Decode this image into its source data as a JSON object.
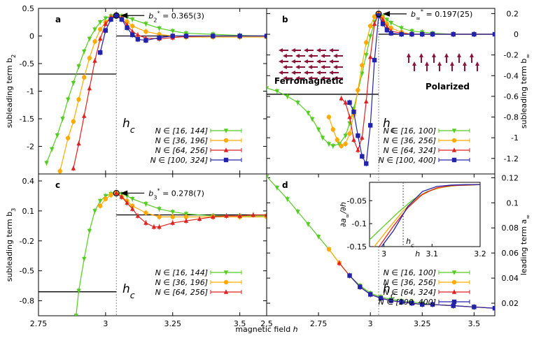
{
  "figure": {
    "xlabel": "magnetic field h",
    "hc_label": "h_c"
  },
  "chart_data": [
    {
      "type": "line",
      "panel": "a",
      "ylabel": "subleading term b_2",
      "xlim": [
        2.75,
        3.6
      ],
      "ylim": [
        -2.5,
        0.5
      ],
      "xticks": [
        2.75,
        3,
        3.25,
        3.5
      ],
      "xtick_labels": [
        "2.75",
        "3",
        "3.25",
        "3.5"
      ],
      "yticks": [
        0.5,
        0,
        -0.5,
        -1,
        -1.5,
        -2
      ],
      "ytick_labels": [
        "0.5",
        "0",
        "-0.5",
        "-1",
        "-1.5",
        "-2"
      ],
      "hc": 3.04,
      "annotation": {
        "label": "b",
        "sub": "2",
        "sup": "*",
        "value": " = 0.365(3)",
        "x": 3.04,
        "y": 0.37
      },
      "hlines": [
        {
          "y": -0.69,
          "x0": 2.75,
          "x1": 3.04
        },
        {
          "y": 0.0,
          "x0": 3.04,
          "x1": 3.6
        }
      ],
      "series": [
        {
          "name": "N ∈ [16, 144]",
          "color": "#55cc22",
          "marker": "tri_down",
          "x": [
            2.78,
            2.8,
            2.82,
            2.84,
            2.86,
            2.88,
            2.9,
            2.92,
            2.94,
            2.96,
            2.98,
            3.0,
            3.02,
            3.04,
            3.06,
            3.08,
            3.1,
            3.15,
            3.2,
            3.25,
            3.3,
            3.4,
            3.5,
            3.6
          ],
          "y": [
            -2.3,
            -2.05,
            -1.8,
            -1.5,
            -1.15,
            -0.85,
            -0.55,
            -0.28,
            -0.05,
            0.12,
            0.25,
            0.32,
            0.36,
            0.37,
            0.36,
            0.34,
            0.3,
            0.22,
            0.14,
            0.09,
            0.05,
            0.03,
            0.01,
            0.0
          ]
        },
        {
          "name": "N ∈ [36, 196]",
          "color": "#ffaa00",
          "marker": "circle",
          "x": [
            2.83,
            2.86,
            2.88,
            2.9,
            2.92,
            2.94,
            2.96,
            2.98,
            3.0,
            3.02,
            3.04,
            3.06,
            3.08,
            3.1,
            3.15,
            3.2,
            3.25,
            3.3,
            3.4,
            3.5,
            3.6
          ],
          "y": [
            -2.45,
            -1.85,
            -1.55,
            -1.15,
            -0.75,
            -0.4,
            -0.1,
            0.12,
            0.25,
            0.34,
            0.37,
            0.34,
            0.26,
            0.18,
            0.08,
            0.03,
            0.0,
            -0.02,
            -0.02,
            -0.02,
            -0.02
          ]
        },
        {
          "name": "N ∈ [64, 256]",
          "color": "#dd2222",
          "marker": "triangle",
          "x": [
            2.88,
            2.9,
            2.92,
            2.94,
            2.96,
            2.98,
            3.0,
            3.02,
            3.04,
            3.06,
            3.08,
            3.1,
            3.12,
            3.15,
            3.2,
            3.25,
            3.3,
            3.4,
            3.5,
            3.6
          ],
          "y": [
            -2.4,
            -1.95,
            -1.45,
            -0.95,
            -0.45,
            -0.05,
            0.22,
            0.34,
            0.37,
            0.32,
            0.2,
            0.08,
            0.02,
            -0.04,
            -0.05,
            -0.03,
            -0.01,
            0.0,
            0.0,
            0.0
          ]
        },
        {
          "name": "N ∈ [100, 324]",
          "color": "#2222aa",
          "marker": "square",
          "x": [
            2.98,
            3.0,
            3.02,
            3.04,
            3.06,
            3.08,
            3.1,
            3.12,
            3.15,
            3.2,
            3.25,
            3.3,
            3.4,
            3.5,
            3.6
          ],
          "y": [
            -0.3,
            0.1,
            0.3,
            0.37,
            0.3,
            0.15,
            0.02,
            -0.06,
            -0.08,
            -0.03,
            0.0,
            0.0,
            0.0,
            0.0,
            0.0
          ]
        }
      ]
    },
    {
      "type": "line",
      "panel": "b",
      "ylabel": "subleading term b_∞",
      "xlim": [
        2.5,
        3.6
      ],
      "ylim": [
        -1.35,
        0.25
      ],
      "xticks": [],
      "xtick_labels": [],
      "yticks": [
        0.2,
        0,
        -0.2,
        -0.4,
        -0.6,
        -0.8,
        -1,
        -1.2
      ],
      "ytick_labels": [
        "0.2",
        "0",
        "-0.2",
        "-0.4",
        "-0.6",
        "-0.8",
        "-1",
        "-1.2"
      ],
      "hc": 3.04,
      "annotation": {
        "label": "b",
        "sub": "∞",
        "sup": "*",
        "value": " = 0.197(25)",
        "x": 3.04,
        "y": 0.197
      },
      "hlines": [
        {
          "y": -0.58,
          "x0": 2.5,
          "x1": 3.04
        },
        {
          "y": 0.0,
          "x0": 3.04,
          "x1": 3.6
        }
      ],
      "phase_left": "Ferromagnetic",
      "phase_right": "Polarized",
      "series": [
        {
          "name": "N ∈ [16, 100]",
          "color": "#55cc22",
          "marker": "tri_down",
          "x": [
            2.5,
            2.55,
            2.6,
            2.65,
            2.7,
            2.72,
            2.75,
            2.77,
            2.8,
            2.82,
            2.85,
            2.88,
            2.9,
            2.92,
            2.94,
            2.96,
            2.98,
            3.0,
            3.02,
            3.04,
            3.06,
            3.08,
            3.1,
            3.15,
            3.2,
            3.25,
            3.3,
            3.4,
            3.5,
            3.6
          ],
          "y": [
            -0.52,
            -0.55,
            -0.6,
            -0.66,
            -0.76,
            -0.82,
            -0.92,
            -1.0,
            -1.06,
            -1.08,
            -1.06,
            -0.98,
            -0.86,
            -0.72,
            -0.55,
            -0.38,
            -0.2,
            -0.02,
            0.12,
            0.19,
            0.17,
            0.14,
            0.11,
            0.06,
            0.03,
            0.02,
            0.01,
            0.0,
            0.0,
            0.0
          ]
        },
        {
          "name": "N ∈ [36, 256]",
          "color": "#ffaa00",
          "marker": "circle",
          "x": [
            2.8,
            2.82,
            2.84,
            2.86,
            2.88,
            2.9,
            2.92,
            2.94,
            2.96,
            2.98,
            3.0,
            3.02,
            3.04,
            3.06,
            3.08,
            3.1,
            3.15,
            3.2,
            3.25,
            3.3,
            3.4,
            3.5,
            3.6
          ],
          "y": [
            -0.8,
            -0.92,
            -1.02,
            -1.08,
            -1.06,
            -0.96,
            -0.78,
            -0.54,
            -0.3,
            -0.08,
            0.08,
            0.17,
            0.2,
            0.16,
            0.1,
            0.06,
            0.02,
            0.0,
            0.0,
            0.0,
            0.0,
            0.0,
            0.0
          ]
        },
        {
          "name": "N ∈ [64, 324]",
          "color": "#dd2222",
          "marker": "triangle",
          "x": [
            2.86,
            2.88,
            2.9,
            2.92,
            2.94,
            2.96,
            2.98,
            3.0,
            3.02,
            3.04,
            3.06,
            3.08,
            3.1,
            3.15,
            3.2,
            3.25,
            3.3,
            3.4,
            3.5,
            3.6
          ],
          "y": [
            -0.62,
            -0.66,
            -0.8,
            -1.02,
            -1.12,
            -1.0,
            -0.65,
            -0.22,
            0.1,
            0.2,
            0.14,
            0.07,
            0.03,
            0.01,
            0.0,
            0.0,
            0.0,
            0.0,
            0.0,
            0.0
          ]
        },
        {
          "name": "N ∈ [100, 400]",
          "color": "#2222aa",
          "marker": "square",
          "x": [
            2.9,
            2.92,
            2.94,
            2.96,
            2.98,
            3.0,
            3.02,
            3.04,
            3.06,
            3.08,
            3.1,
            3.15,
            3.2,
            3.25,
            3.3,
            3.4,
            3.5,
            3.6
          ],
          "y": [
            -0.66,
            -0.75,
            -0.98,
            -1.18,
            -1.25,
            -0.88,
            -0.25,
            0.18,
            0.1,
            0.04,
            0.01,
            0.0,
            0.0,
            0.0,
            0.0,
            0.0,
            0.0,
            0.0
          ]
        }
      ]
    },
    {
      "type": "line",
      "panel": "c",
      "ylabel": "subleading term b_3",
      "xlim": [
        2.75,
        3.6
      ],
      "ylim": [
        -0.95,
        0.47
      ],
      "xticks": [
        2.75,
        3,
        3.25,
        3.5
      ],
      "xtick_labels": [
        "2.75",
        "3",
        "3.25",
        "3.5"
      ],
      "yticks": [
        0.4,
        0.1,
        -0.2,
        -0.5,
        -0.8
      ],
      "ytick_labels": [
        "0.4",
        "0.1",
        "-0.2",
        "-0.5",
        "-0.8"
      ],
      "hc": 3.04,
      "annotation": {
        "label": "b",
        "sub": "3",
        "sup": "*",
        "value": " = 0.278(7)",
        "x": 3.04,
        "y": 0.278
      },
      "hlines": [
        {
          "y": -0.71,
          "x0": 2.75,
          "x1": 3.04
        },
        {
          "y": 0.06,
          "x0": 3.04,
          "x1": 3.6
        }
      ],
      "series": [
        {
          "name": "N ∈ [16, 144]",
          "color": "#55cc22",
          "marker": "tri_down",
          "x": [
            2.89,
            2.9,
            2.92,
            2.94,
            2.96,
            2.98,
            3.0,
            3.02,
            3.04,
            3.06,
            3.08,
            3.1,
            3.15,
            3.2,
            3.25,
            3.3,
            3.4,
            3.5,
            3.6
          ],
          "y": [
            -0.95,
            -0.7,
            -0.38,
            -0.1,
            0.1,
            0.2,
            0.25,
            0.27,
            0.28,
            0.27,
            0.25,
            0.22,
            0.17,
            0.12,
            0.09,
            0.07,
            0.05,
            0.05,
            0.05
          ]
        },
        {
          "name": "N ∈ [36, 196]",
          "color": "#ffaa00",
          "marker": "circle",
          "x": [
            2.98,
            3.0,
            3.02,
            3.04,
            3.06,
            3.08,
            3.1,
            3.15,
            3.2,
            3.25,
            3.3,
            3.4,
            3.5,
            3.6
          ],
          "y": [
            0.15,
            0.22,
            0.26,
            0.28,
            0.24,
            0.2,
            0.15,
            0.08,
            0.04,
            0.04,
            0.04,
            0.04,
            0.04,
            0.04
          ]
        },
        {
          "name": "N ∈ [64, 256]",
          "color": "#dd2222",
          "marker": "triangle",
          "x": [
            3.04,
            3.06,
            3.08,
            3.1,
            3.12,
            3.15,
            3.18,
            3.2,
            3.25,
            3.3,
            3.35,
            3.4,
            3.45,
            3.5,
            3.55,
            3.6
          ],
          "y": [
            0.28,
            0.24,
            0.18,
            0.12,
            0.05,
            -0.02,
            -0.06,
            -0.06,
            -0.02,
            0.0,
            0.02,
            0.04,
            0.05,
            0.05,
            0.06,
            0.06
          ]
        }
      ]
    },
    {
      "type": "line",
      "panel": "d",
      "ylabel": "leading term a_∞",
      "xlim": [
        2.5,
        3.6
      ],
      "ylim": [
        0.01,
        0.123
      ],
      "xticks": [
        2.5,
        2.75,
        3,
        3.25,
        3.5
      ],
      "xtick_labels": [
        "2.5",
        "2.75",
        "3",
        "3.25",
        "3.5"
      ],
      "yticks": [
        0.12,
        0.1,
        0.08,
        0.06,
        0.04,
        0.02
      ],
      "ytick_labels": [
        "0.12",
        "0.1",
        "0.08",
        "0.06",
        "0.04",
        "0.02"
      ],
      "hc": 3.04,
      "series": [
        {
          "name": "N ∈ [16, 100]",
          "color": "#55cc22",
          "marker": "tri_down",
          "x": [
            2.5,
            2.55,
            2.6,
            2.65,
            2.7,
            2.75,
            2.8,
            2.85,
            2.9,
            2.95,
            3.0,
            3.05,
            3.1,
            3.15,
            3.2,
            3.25,
            3.3,
            3.4,
            3.5,
            3.6
          ],
          "y": [
            0.121,
            0.112,
            0.103,
            0.093,
            0.083,
            0.073,
            0.063,
            0.052,
            0.042,
            0.034,
            0.028,
            0.025,
            0.023,
            0.022,
            0.021,
            0.02,
            0.019,
            0.018,
            0.017,
            0.016
          ]
        },
        {
          "name": "N ∈ [36, 256]",
          "color": "#ffaa00",
          "marker": "circle",
          "x": [
            2.8,
            2.85,
            2.9,
            2.95,
            3.0,
            3.05,
            3.1,
            3.15,
            3.2,
            3.25,
            3.3,
            3.4,
            3.5,
            3.6
          ],
          "y": [
            0.063,
            0.052,
            0.042,
            0.033,
            0.027,
            0.024,
            0.022,
            0.021,
            0.02,
            0.019,
            0.019,
            0.018,
            0.017,
            0.016
          ]
        },
        {
          "name": "N ∈ [64, 324]",
          "color": "#dd2222",
          "marker": "triangle",
          "x": [
            2.85,
            2.9,
            2.95,
            3.0,
            3.05,
            3.1,
            3.15,
            3.2,
            3.25,
            3.3,
            3.4,
            3.5,
            3.6
          ],
          "y": [
            0.052,
            0.042,
            0.033,
            0.027,
            0.024,
            0.022,
            0.021,
            0.02,
            0.019,
            0.019,
            0.018,
            0.017,
            0.016
          ]
        },
        {
          "name": "N ∈ [100, 400]",
          "color": "#2222aa",
          "marker": "square",
          "x": [
            2.9,
            2.95,
            3.0,
            3.05,
            3.1,
            3.15,
            3.2,
            3.25,
            3.3,
            3.4,
            3.5,
            3.6
          ],
          "y": [
            0.042,
            0.033,
            0.027,
            0.024,
            0.022,
            0.021,
            0.02,
            0.019,
            0.019,
            0.018,
            0.017,
            0.016
          ]
        }
      ],
      "inset": {
        "ylabel": "∂a_∞/∂h",
        "xlabel": "h",
        "xlim": [
          2.97,
          3.2
        ],
        "ylim": [
          -0.15,
          -0.01
        ],
        "xticks": [
          3,
          3.1,
          3.2
        ],
        "xtick_labels": [
          "3",
          "3.1",
          "3.2"
        ],
        "yticks": [
          -0.05,
          -0.1,
          -0.15
        ],
        "ytick_labels": [
          "-0.05",
          "-0.1",
          "-0.15"
        ],
        "hc": 3.04,
        "series": [
          {
            "color": "#55cc22",
            "x": [
              2.97,
              3.0,
              3.03,
              3.06,
              3.09,
              3.12,
              3.15,
              3.18,
              3.2
            ],
            "y": [
              -0.135,
              -0.105,
              -0.075,
              -0.048,
              -0.03,
              -0.021,
              -0.017,
              -0.016,
              -0.015
            ]
          },
          {
            "color": "#ffaa00",
            "x": [
              2.98,
              3.01,
              3.04,
              3.07,
              3.1,
              3.13,
              3.16,
              3.2
            ],
            "y": [
              -0.15,
              -0.11,
              -0.072,
              -0.043,
              -0.026,
              -0.019,
              -0.016,
              -0.015
            ]
          },
          {
            "color": "#dd2222",
            "x": [
              2.99,
              3.02,
              3.05,
              3.08,
              3.11,
              3.14,
              3.17,
              3.2
            ],
            "y": [
              -0.15,
              -0.105,
              -0.065,
              -0.036,
              -0.022,
              -0.017,
              -0.016,
              -0.015
            ]
          },
          {
            "color": "#2222aa",
            "x": [
              2.995,
              3.02,
              3.05,
              3.08,
              3.11,
              3.14,
              3.17,
              3.2
            ],
            "y": [
              -0.15,
              -0.115,
              -0.062,
              -0.03,
              -0.019,
              -0.016,
              -0.015,
              -0.015
            ]
          }
        ]
      }
    }
  ]
}
